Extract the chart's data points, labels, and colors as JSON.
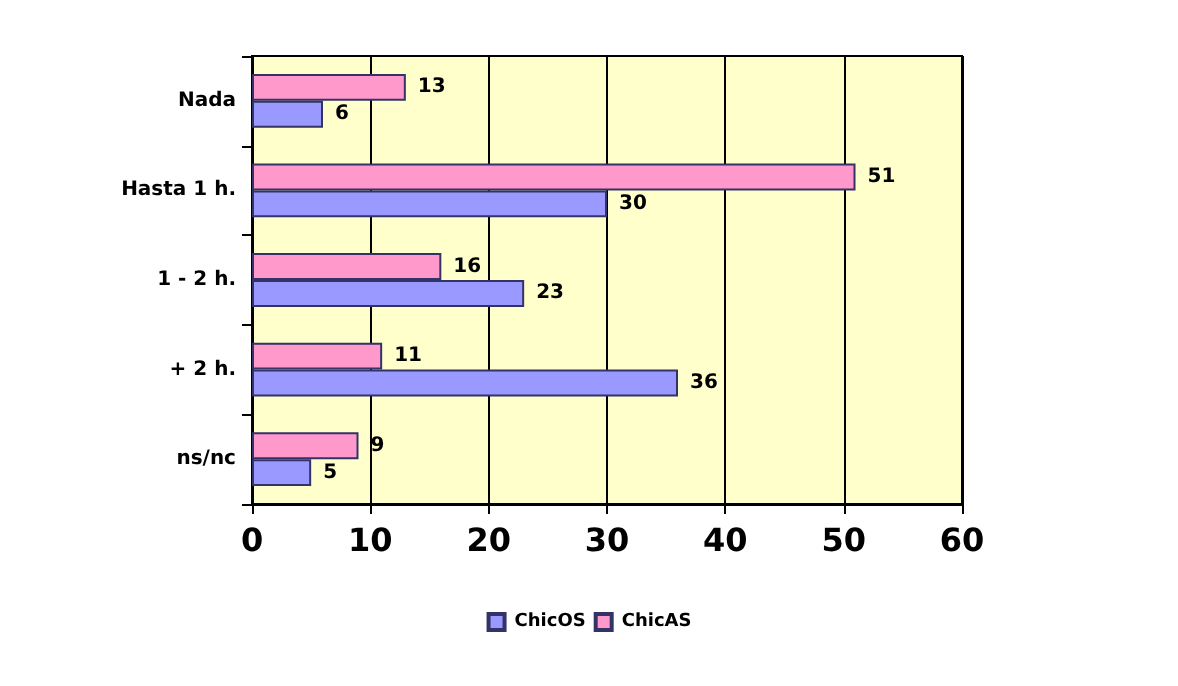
{
  "chart_data": {
    "type": "bar",
    "orientation": "horizontal",
    "categories": [
      "Nada",
      "Hasta 1 h.",
      "1 - 2 h.",
      "+ 2 h.",
      "ns/nc"
    ],
    "series": [
      {
        "name": "ChicOS",
        "color": "#9999ff",
        "values": [
          6,
          30,
          23,
          36,
          5
        ]
      },
      {
        "name": "ChicAS",
        "color": "#ff99cc",
        "values": [
          13,
          51,
          16,
          11,
          9
        ]
      }
    ],
    "xlim": [
      0,
      60
    ],
    "xticks": [
      0,
      10,
      20,
      30,
      40,
      50,
      60
    ],
    "grid": "x",
    "legend": "bottom",
    "data_labels": true
  }
}
